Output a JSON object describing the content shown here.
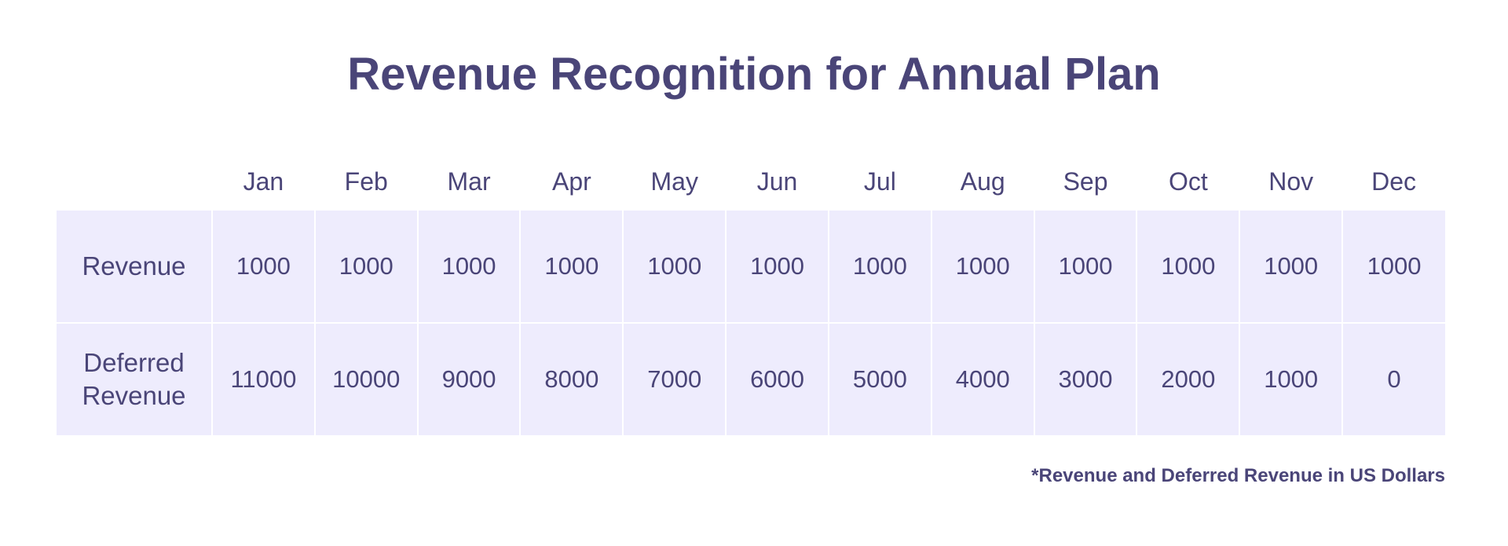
{
  "chart_data": {
    "type": "table",
    "title": "Revenue Recognition for Annual Plan",
    "columns": [
      "Jan",
      "Feb",
      "Mar",
      "Apr",
      "May",
      "Jun",
      "Jul",
      "Aug",
      "Sep",
      "Oct",
      "Nov",
      "Dec"
    ],
    "rows": [
      {
        "label": "Revenue",
        "values": [
          "1000",
          "1000",
          "1000",
          "1000",
          "1000",
          "1000",
          "1000",
          "1000",
          "1000",
          "1000",
          "1000",
          "1000"
        ]
      },
      {
        "label": "Deferred\nRevenue",
        "values": [
          "11000",
          "10000",
          "9000",
          "8000",
          "7000",
          "6000",
          "5000",
          "4000",
          "3000",
          "2000",
          "1000",
          "0"
        ]
      }
    ],
    "footnote": "*Revenue and Deferred Revenue in US Dollars"
  },
  "colors": {
    "text": "#4a4578",
    "cell_background": "#eeecfd"
  }
}
